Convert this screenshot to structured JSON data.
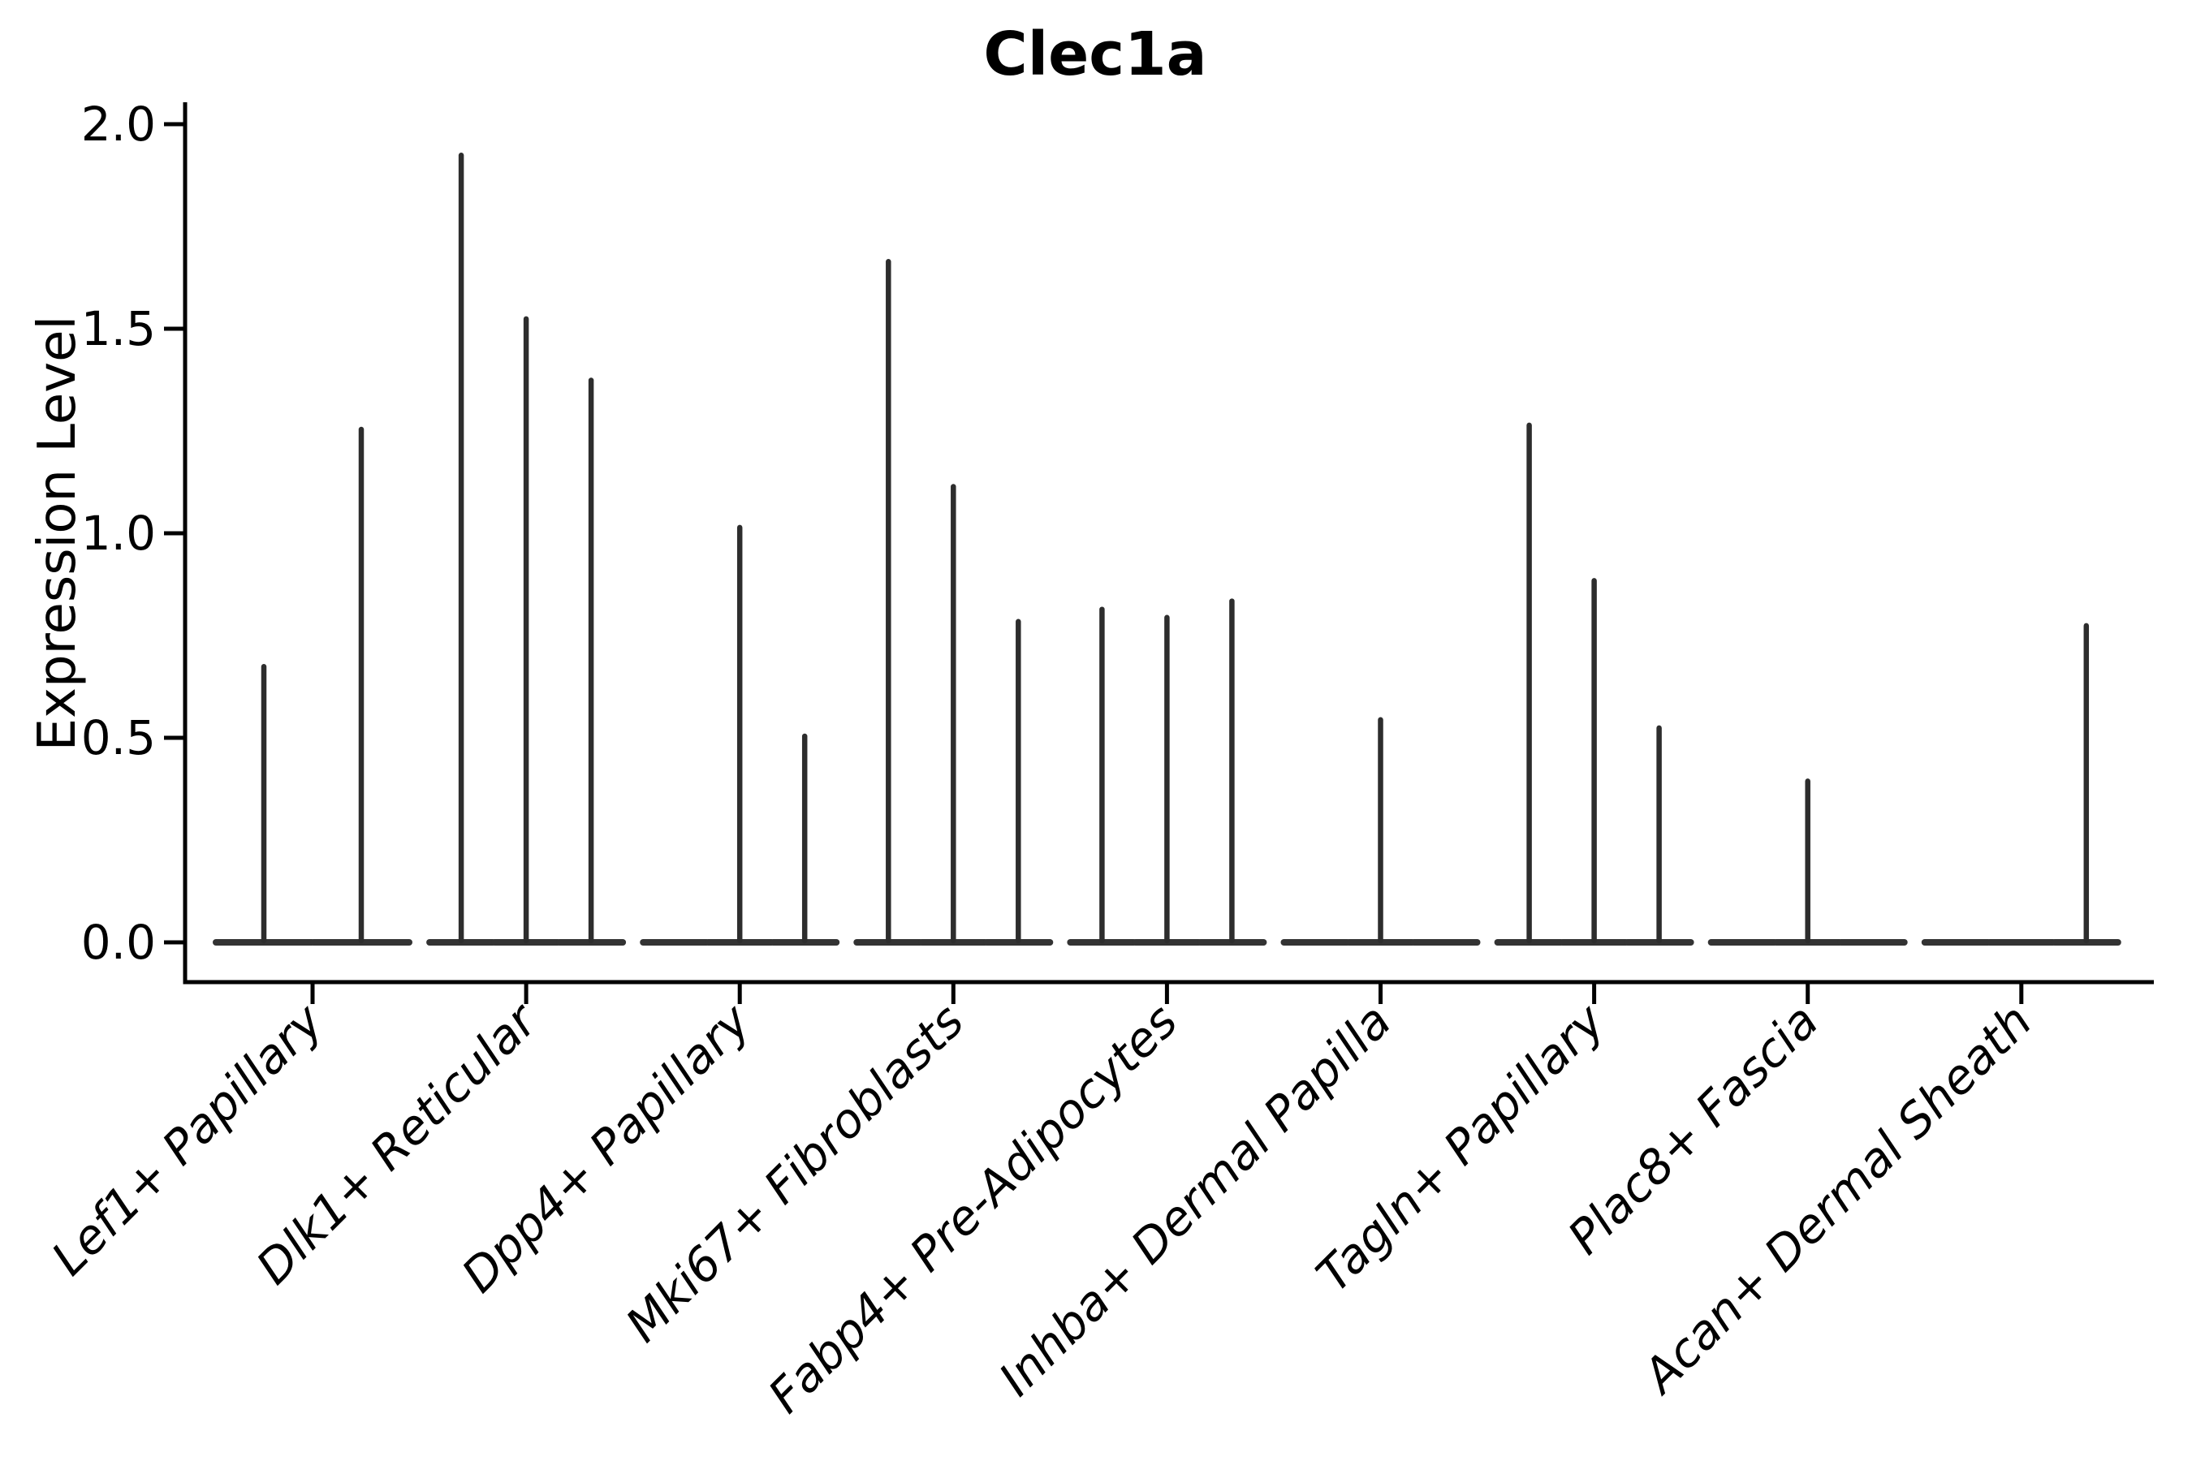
{
  "chart_data": {
    "type": "violin",
    "title": "Clec1a",
    "ylabel": "Expression Level",
    "xlabel": "",
    "yticks": [
      0.0,
      0.5,
      1.0,
      1.5,
      2.0
    ],
    "ytick_labels": [
      "0.0",
      "0.5",
      "1.0",
      "1.5",
      "2.0"
    ],
    "ylim": [
      -0.1,
      2.05
    ],
    "grid": false,
    "legend": "none",
    "categories": [
      "Lef1+ Papillary",
      "Dlk1+ Reticular",
      "Dpp4+ Papillary",
      "Mki67+ Fibroblasts",
      "Fabp4+ Pre-Adipocytes",
      "Inhba+ Dermal Papilla",
      "Tagln+ Papillary",
      "Plac8+ Fascia",
      "Acan+ Dermal Sheath"
    ],
    "series_note": "Each category holds narrow spike-shaped violins (bulk of cells at 0); value = peak expression reached by each violin, 0 = completely flat violin at baseline",
    "violin_peaks": [
      [
        0.68,
        1.26
      ],
      [
        1.93,
        1.53,
        1.38
      ],
      [
        0,
        1.02,
        0.51
      ],
      [
        1.67,
        1.12,
        0.79
      ],
      [
        0.82,
        0.8,
        0.84
      ],
      [
        0,
        0.55,
        0
      ],
      [
        1.27,
        0.89,
        0.53
      ],
      [
        0,
        0.4,
        0
      ],
      [
        0,
        0,
        0.78
      ]
    ],
    "colors": {
      "background": "#ffffff",
      "spike_stroke": "#2d2d2d",
      "baseline_stroke": "#333333",
      "axis_color": "#000000",
      "text_color": "#000000"
    }
  }
}
